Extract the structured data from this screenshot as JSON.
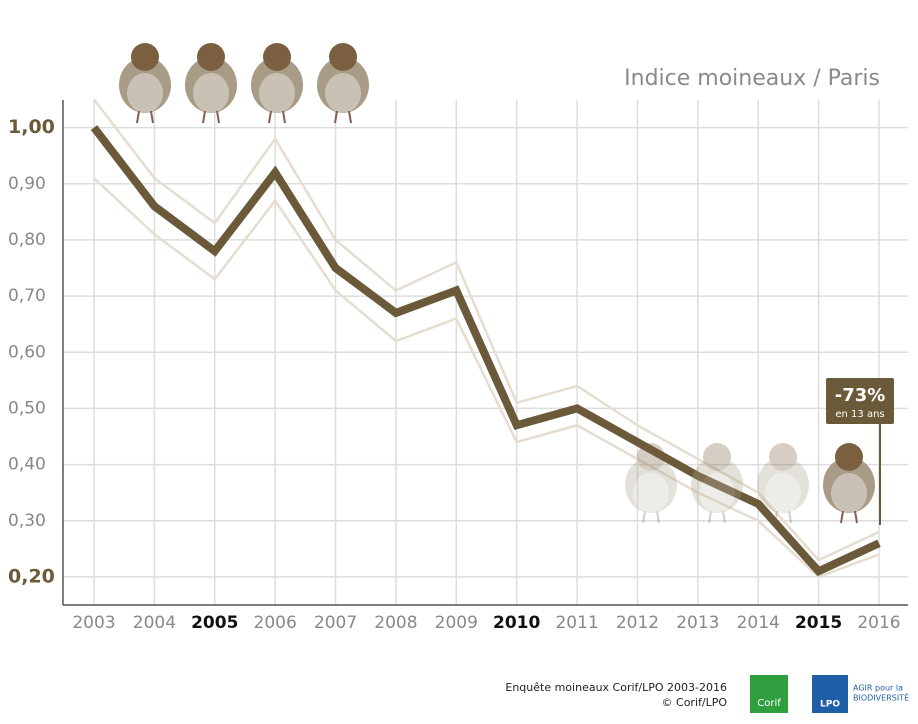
{
  "chart_data": {
    "type": "line",
    "title": "Indice moineaux / Paris",
    "categories": [
      "2003",
      "2004",
      "2005",
      "2006",
      "2007",
      "2008",
      "2009",
      "2010",
      "2011",
      "2012",
      "2013",
      "2014",
      "2015",
      "2016"
    ],
    "highlighted": [
      2,
      7,
      12
    ],
    "series": [
      {
        "color": "#6b5a3a",
        "values": [
          1.0,
          0.86,
          0.78,
          0.92,
          0.75,
          0.67,
          0.71,
          0.47,
          0.5,
          0.44,
          0.38,
          0.33,
          0.21,
          0.26
        ]
      },
      {
        "color": "#e6ddd0",
        "values": [
          1.05,
          0.91,
          0.83,
          0.98,
          0.8,
          0.71,
          0.76,
          0.51,
          0.54,
          0.47,
          0.41,
          0.35,
          0.23,
          0.28
        ]
      },
      {
        "color": "#e6ddd0",
        "values": [
          0.91,
          0.81,
          0.73,
          0.87,
          0.71,
          0.62,
          0.66,
          0.44,
          0.47,
          0.41,
          0.35,
          0.3,
          0.2,
          0.24
        ]
      }
    ],
    "ylim": [
      0.15,
      1.05
    ],
    "yticks": [
      {
        "value": 0.2,
        "label": "0,20"
      },
      {
        "value": 0.3,
        "label": "0,30"
      },
      {
        "value": 0.4,
        "label": "0,40"
      },
      {
        "value": 0.5,
        "label": "0,50"
      },
      {
        "value": 0.6,
        "label": "0,60"
      },
      {
        "value": 0.7,
        "label": "0,70"
      },
      {
        "value": 0.8,
        "label": "0,80"
      },
      {
        "value": 0.9,
        "label": "0,90"
      },
      {
        "value": 1.0,
        "label": "1,00"
      }
    ],
    "grid": true,
    "annotation": {
      "value": "-73%",
      "text": "en 13 ans"
    }
  },
  "footer": {
    "source": "Enquête moineaux Corif/LPO 2003-2016",
    "copyright": "© Corif/LPO",
    "logo1": "Corif",
    "logo2": "LPO",
    "logo3a": "AGIR pour la",
    "logo3b": "BIODIVERSITÉ"
  }
}
